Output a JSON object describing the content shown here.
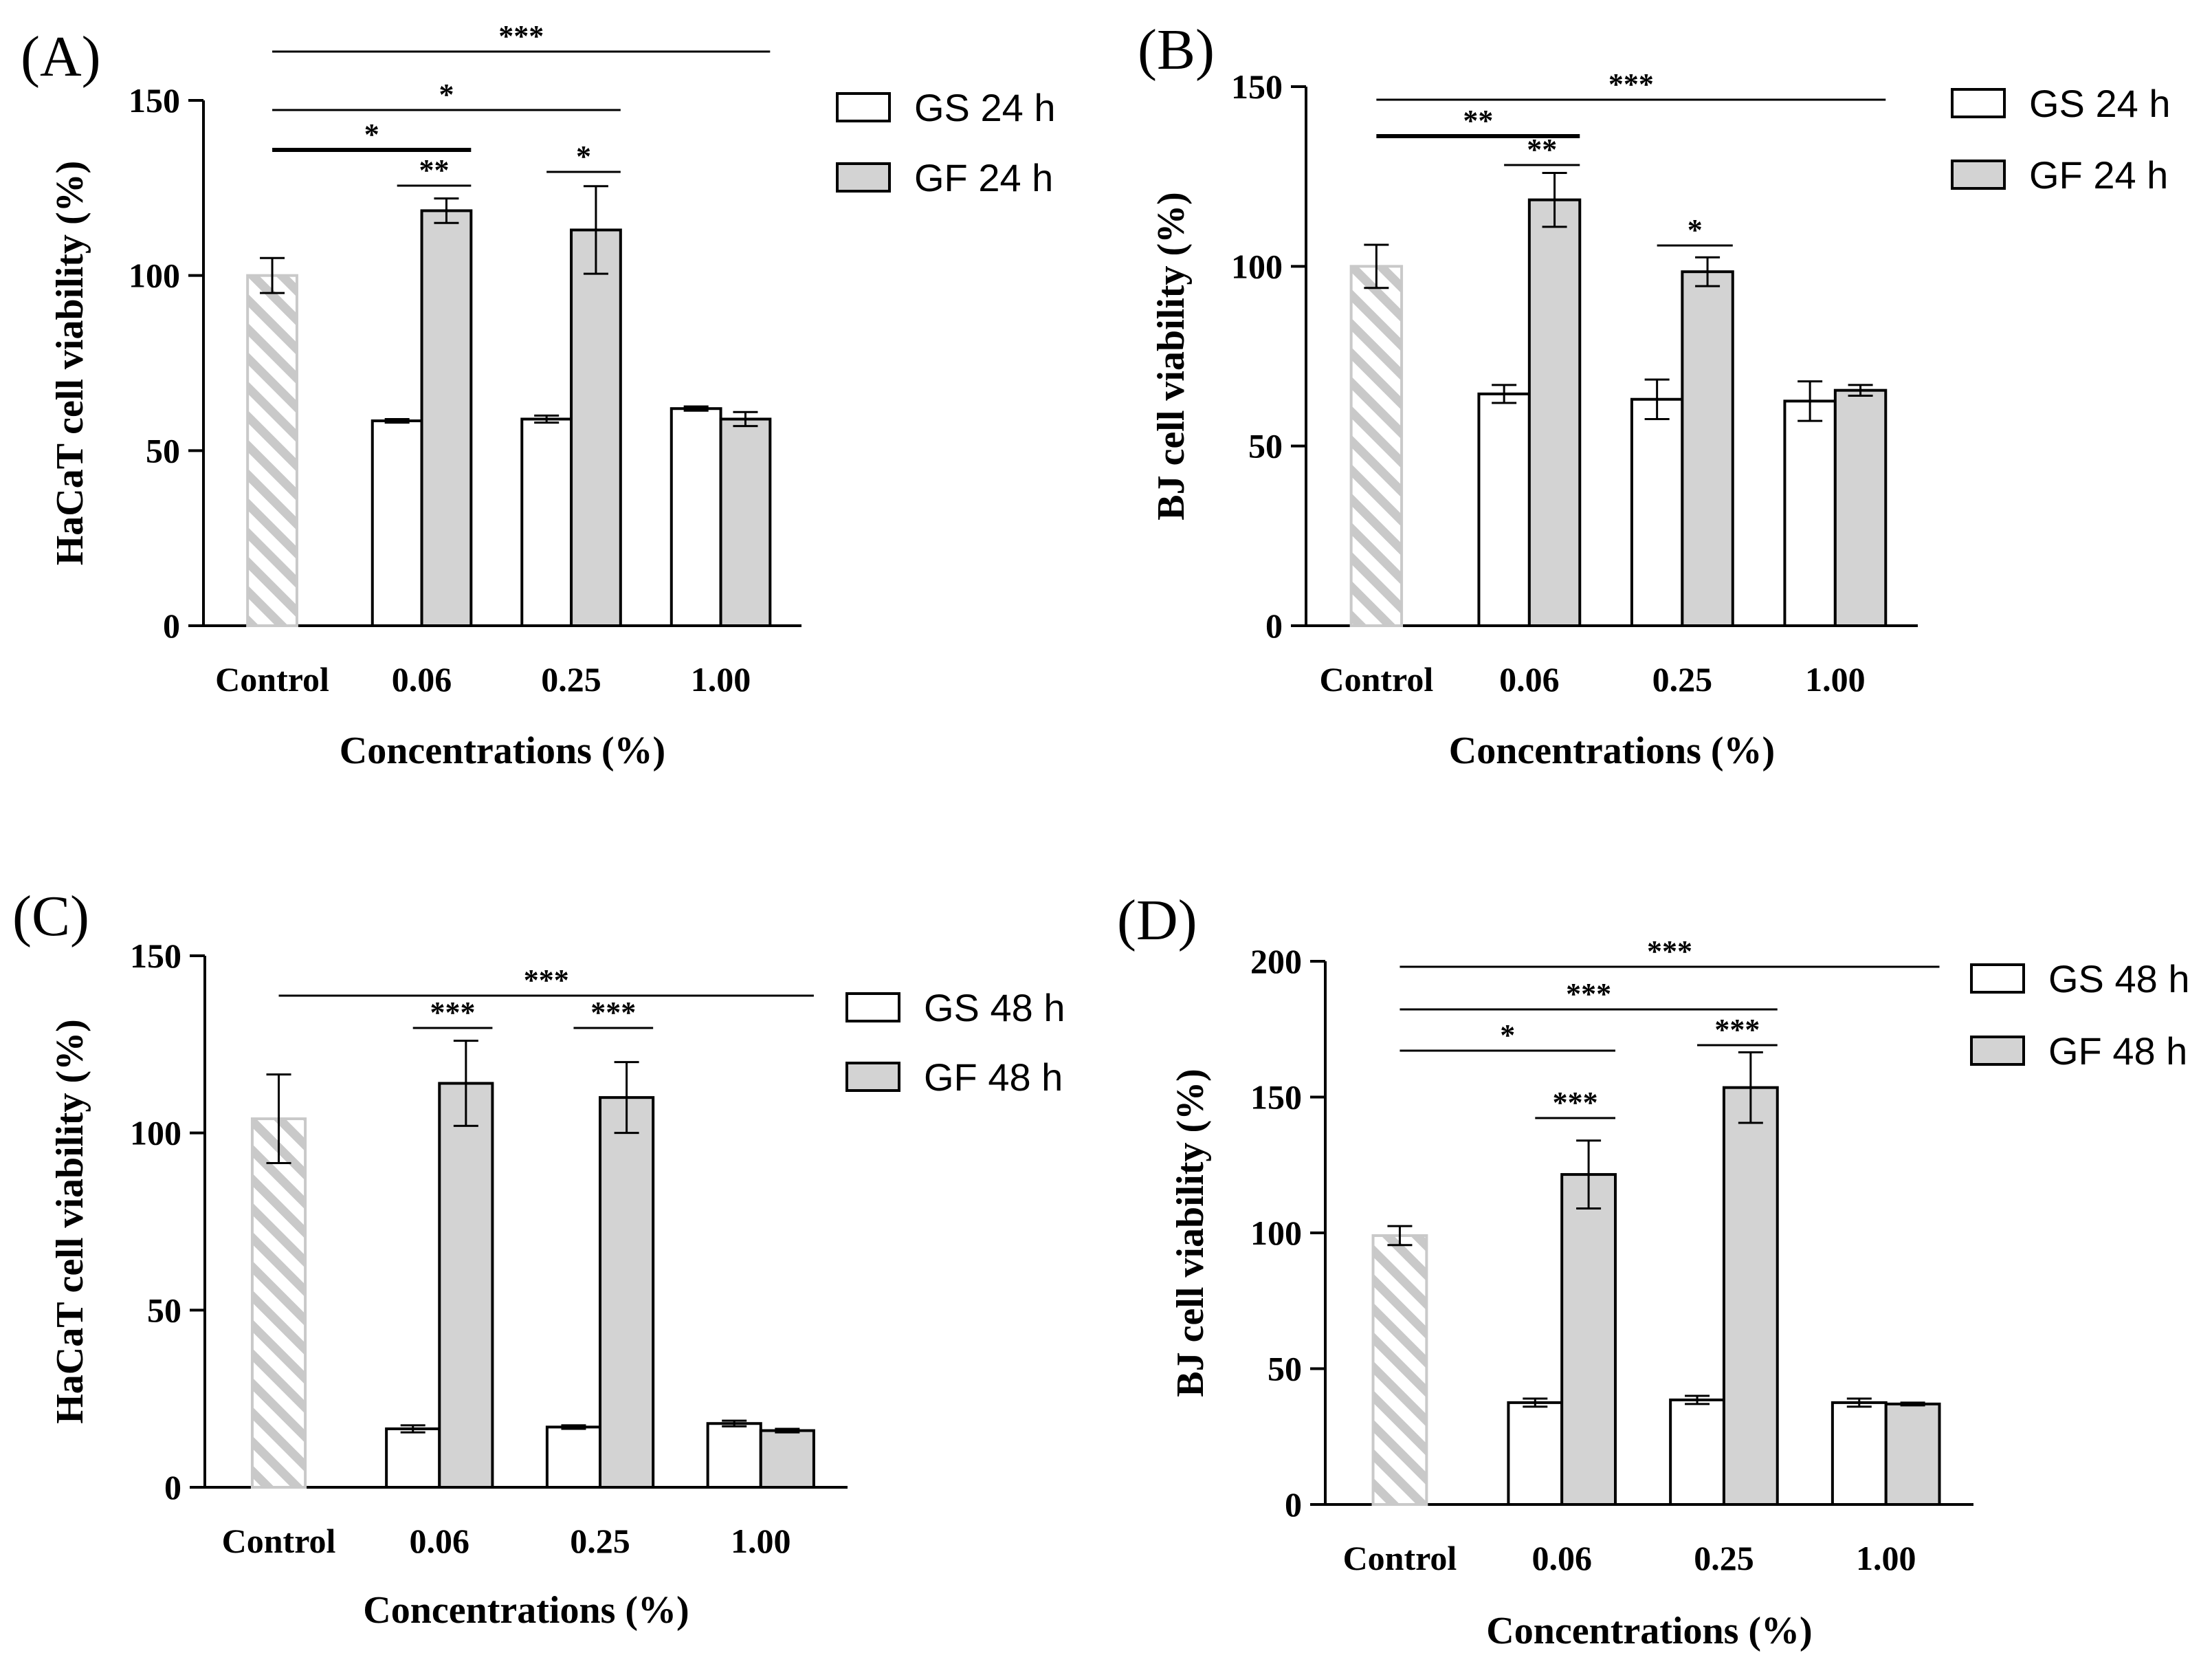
{
  "colors": {
    "axis": "#000000",
    "gs_fill": "#ffffff",
    "gf_fill": "#d3d3d3",
    "control_stripe": "#c9c9c9"
  },
  "chart_data": [
    {
      "type": "bar",
      "panel": "(A)",
      "xlabel": "Concentrations (%)",
      "ylabel": "HaCaT cell viability (%)",
      "ylim": [
        0,
        150
      ],
      "yticks": [
        "0",
        "50",
        "100",
        "150"
      ],
      "categories": [
        "Control",
        "0.06",
        "0.25",
        "1.00"
      ],
      "control": {
        "value": 100,
        "err": 5
      },
      "series": [
        {
          "name": "GS 24 h",
          "values": [
            null,
            58.5,
            59,
            62
          ],
          "err": [
            null,
            0.5,
            1,
            0.6
          ]
        },
        {
          "name": "GF 24 h",
          "values": [
            null,
            118.5,
            113,
            59
          ],
          "err": [
            null,
            3.5,
            12.5,
            2
          ]
        }
      ],
      "annotations": [
        {
          "text": "***",
          "from": "control",
          "to": "3.GF"
        },
        {
          "text": "*",
          "from": "control",
          "to": "2.GF"
        },
        {
          "text": "*",
          "from": "control",
          "to": "1.GF"
        },
        {
          "text": "**",
          "from": "1.GS",
          "to": "1.GF"
        },
        {
          "text": "*",
          "from": "2.GS",
          "to": "2.GF"
        }
      ]
    },
    {
      "type": "bar",
      "panel": "(B)",
      "xlabel": "Concentrations (%)",
      "ylabel": "BJ cell viability (%)",
      "ylim": [
        0,
        150
      ],
      "yticks": [
        "0",
        "50",
        "100",
        "150"
      ],
      "categories": [
        "Control",
        "0.06",
        "0.25",
        "1.00"
      ],
      "control": {
        "value": 100,
        "err": 6
      },
      "series": [
        {
          "name": "GS 24 h",
          "values": [
            null,
            64.5,
            63,
            62.5
          ],
          "err": [
            null,
            2.5,
            5.5,
            5.5
          ]
        },
        {
          "name": "GF 24 h",
          "values": [
            null,
            118.5,
            98.5,
            65.5
          ],
          "err": [
            null,
            7.5,
            4,
            1.5
          ]
        }
      ],
      "annotations": [
        {
          "text": "***",
          "from": "control",
          "to": "3.GF"
        },
        {
          "text": "**",
          "from": "control",
          "to": "1.GF"
        },
        {
          "text": "**",
          "from": "1.GS",
          "to": "1.GF"
        },
        {
          "text": "*",
          "from": "2.GS",
          "to": "2.GF"
        }
      ]
    },
    {
      "type": "bar",
      "panel": "(C)",
      "xlabel": "Concentrations (%)",
      "ylabel": "HaCaT cell viability (%)",
      "ylim": [
        0,
        150
      ],
      "yticks": [
        "0",
        "50",
        "100",
        "150"
      ],
      "categories": [
        "Control",
        "0.06",
        "0.25",
        "1.00"
      ],
      "control": {
        "value": 104,
        "err": 12.5
      },
      "series": [
        {
          "name": "GS 48 h",
          "values": [
            null,
            16.5,
            17,
            18
          ],
          "err": [
            null,
            1,
            0.5,
            0.8
          ]
        },
        {
          "name": "GF 48 h",
          "values": [
            null,
            114,
            110,
            16
          ],
          "err": [
            null,
            12,
            10,
            0.5
          ]
        }
      ],
      "annotations": [
        {
          "text": "***",
          "from": "control",
          "to": "3.GF"
        },
        {
          "text": "***",
          "from": "1.GS",
          "to": "1.GF"
        },
        {
          "text": "***",
          "from": "2.GS",
          "to": "2.GF"
        }
      ]
    },
    {
      "type": "bar",
      "panel": "(D)",
      "xlabel": "Concentrations (%)",
      "ylabel": "BJ cell viability (%)",
      "ylim": [
        0,
        200
      ],
      "yticks": [
        "0",
        "50",
        "100",
        "150",
        "200"
      ],
      "categories": [
        "Control",
        "0.06",
        "0.25",
        "1.00"
      ],
      "control": {
        "value": 99,
        "err": 3.5
      },
      "series": [
        {
          "name": "GS 48 h",
          "values": [
            null,
            37.5,
            38.5,
            37.5
          ],
          "err": [
            null,
            1.5,
            1.5,
            1.5
          ]
        },
        {
          "name": "GF 48 h",
          "values": [
            null,
            121.5,
            153.5,
            37
          ],
          "err": [
            null,
            12.5,
            13,
            0.5
          ]
        }
      ],
      "annotations": [
        {
          "text": "***",
          "from": "control",
          "to": "3.GF"
        },
        {
          "text": "***",
          "from": "control",
          "to": "2.GF"
        },
        {
          "text": "*",
          "from": "control",
          "to": "1.GF"
        },
        {
          "text": "***",
          "from": "1.GS",
          "to": "1.GF"
        },
        {
          "text": "***",
          "from": "2.GS",
          "to": "2.GF"
        }
      ]
    }
  ]
}
